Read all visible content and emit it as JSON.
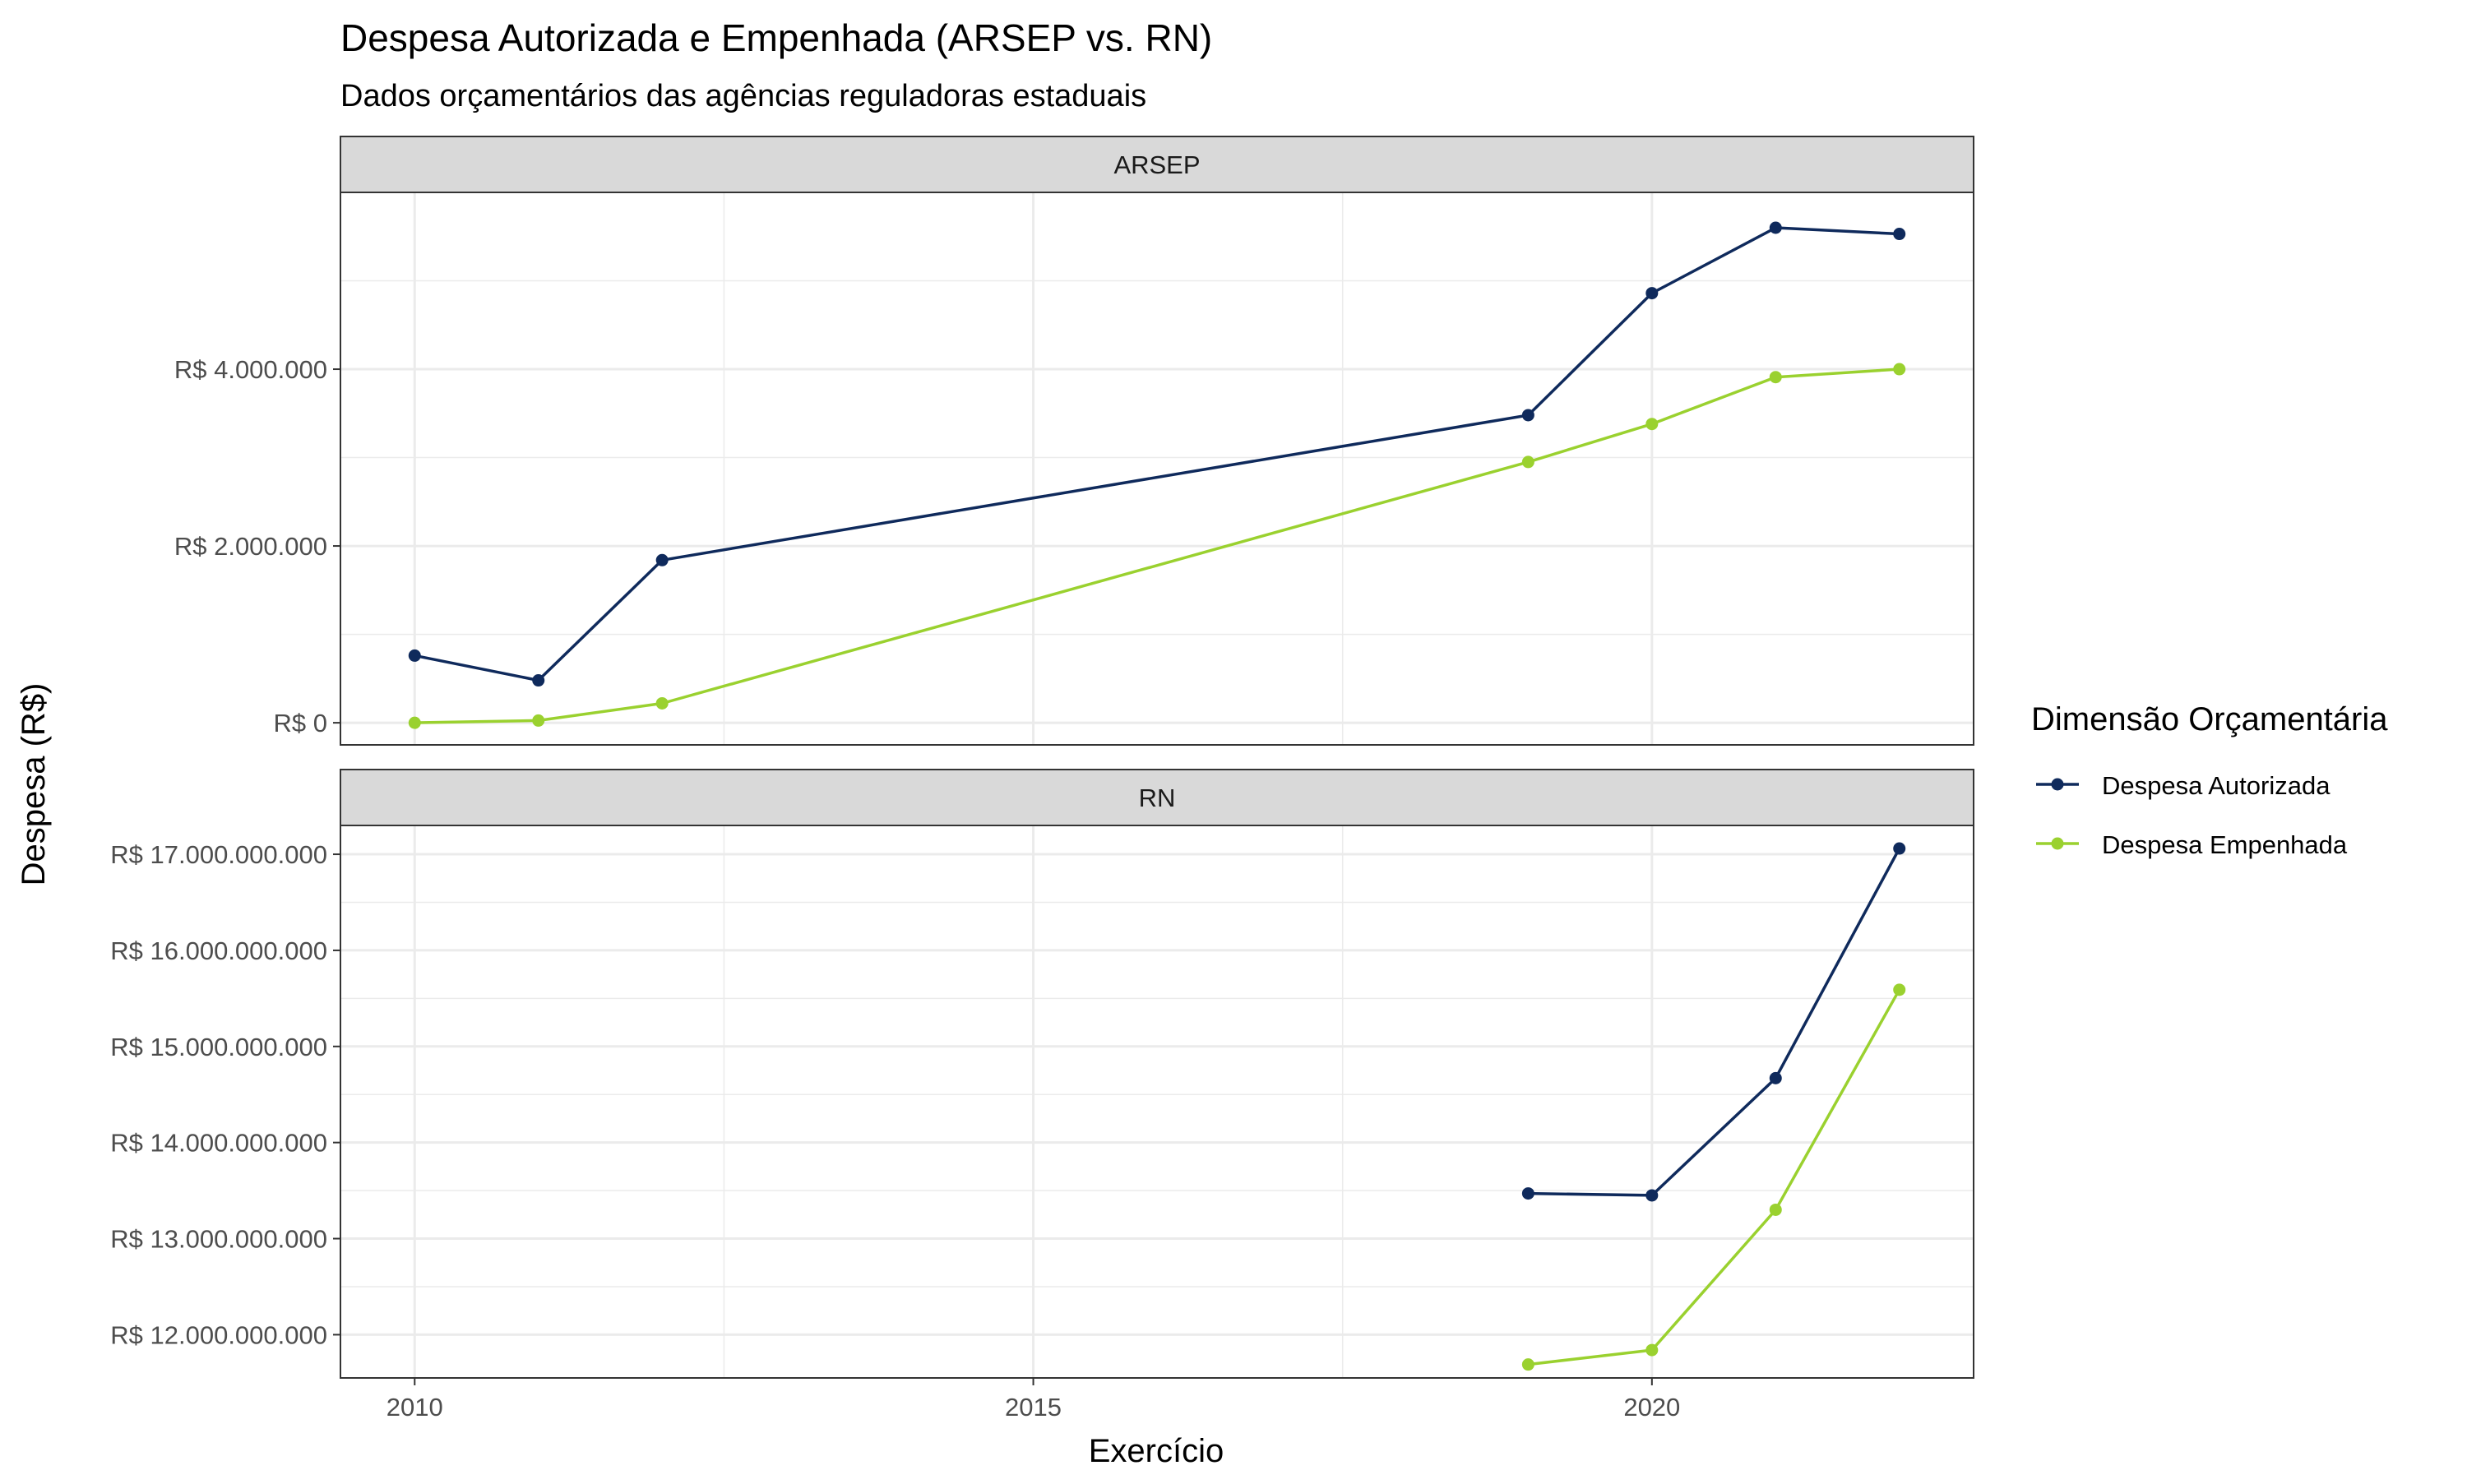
{
  "chart_data": {
    "type": "line",
    "title": "Despesa Autorizada e Empenhada (ARSEP vs. RN)",
    "subtitle": "Dados orçamentários das agências reguladoras estaduais",
    "xlabel": "Exercício",
    "ylabel": "Despesa (R$)",
    "x_ticks": [
      2010,
      2015,
      2020
    ],
    "xlim": [
      2009.4,
      2022.6
    ],
    "legend": {
      "title": "Dimensão Orçamentária",
      "position": "right",
      "entries": [
        "Despesa Autorizada",
        "Despesa Empenhada"
      ]
    },
    "colors": {
      "Despesa Autorizada": "#0f2a5c",
      "Despesa Empenhada": "#9ad12f",
      "strip_background": "#d9d9d9",
      "grid": "#ebebeb",
      "panel_border": "#333333"
    },
    "panels": [
      {
        "name": "ARSEP",
        "ylim": [
          -250000,
          6000000
        ],
        "y_ticks": [
          0,
          2000000,
          4000000
        ],
        "y_tick_labels": [
          "R$ 0",
          "R$ 2.000.000",
          "R$ 4.000.000"
        ],
        "series": [
          {
            "name": "Despesa Autorizada",
            "x": [
              2010,
              2011,
              2012,
              2019,
              2020,
              2021,
              2022
            ],
            "values": [
              760000,
              480000,
              1840000,
              3480000,
              4860000,
              5600000,
              5530000
            ]
          },
          {
            "name": "Despesa Empenhada",
            "x": [
              2010,
              2011,
              2012,
              2019,
              2020,
              2021,
              2022
            ],
            "values": [
              0,
              25000,
              220000,
              2950000,
              3380000,
              3910000,
              4000000
            ]
          }
        ]
      },
      {
        "name": "RN",
        "ylim": [
          11550000000,
          17300000000
        ],
        "y_ticks": [
          12000000000,
          13000000000,
          14000000000,
          15000000000,
          16000000000,
          17000000000
        ],
        "y_tick_labels": [
          "R$ 12.000.000.000",
          "R$ 13.000.000.000",
          "R$ 14.000.000.000",
          "R$ 15.000.000.000",
          "R$ 16.000.000.000",
          "R$ 17.000.000.000"
        ],
        "series": [
          {
            "name": "Despesa Autorizada",
            "x": [
              2019,
              2020,
              2021,
              2022
            ],
            "values": [
              13470000000,
              13450000000,
              14670000000,
              17060000000
            ]
          },
          {
            "name": "Despesa Empenhada",
            "x": [
              2019,
              2020,
              2021,
              2022
            ],
            "values": [
              11690000000,
              11840000000,
              13300000000,
              15590000000
            ]
          }
        ]
      }
    ]
  }
}
